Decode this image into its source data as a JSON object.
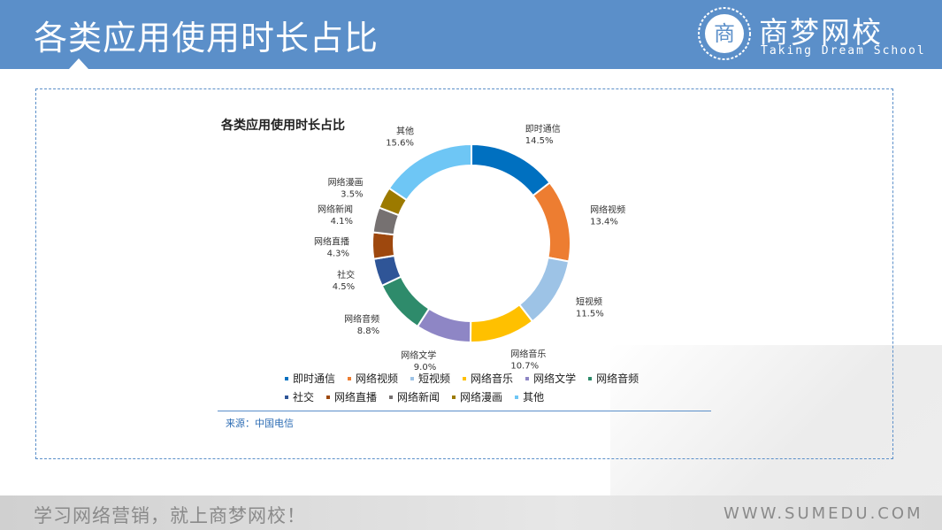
{
  "header": {
    "title": "各类应用使用时长占比",
    "logo_name": "商梦网校",
    "logo_sub": "Taking Dream School",
    "logo_glyph": "商",
    "logo_icon": "seal-logo-icon"
  },
  "chart_data": {
    "type": "pie",
    "donut": true,
    "title": "各类应用使用时长占比",
    "categories": [
      "即时通信",
      "网络视频",
      "短视频",
      "网络音乐",
      "网络文学",
      "网络音频",
      "社交",
      "网络直播",
      "网络新闻",
      "网络漫画",
      "其他"
    ],
    "values": [
      14.5,
      13.4,
      11.5,
      10.7,
      9.0,
      8.8,
      4.5,
      4.3,
      4.1,
      3.5,
      15.6
    ],
    "labels": [
      "14.5%",
      "13.4%",
      "11.5%",
      "10.7%",
      "9.0%",
      "8.8%",
      "4.5%",
      "4.3%",
      "4.1%",
      "3.5%",
      "15.6%"
    ],
    "colors": [
      "#0070c0",
      "#ed7d31",
      "#9dc3e6",
      "#ffc000",
      "#8e86c5",
      "#2e8b6b",
      "#2f5597",
      "#9e480e",
      "#767171",
      "#9c7a00",
      "#6ec6f5"
    ],
    "legend_position": "bottom",
    "source": "来源：中国电信"
  },
  "footer": {
    "slogan": "学习网络营销，就上商梦网校！",
    "url": "WWW.SUMEDU.COM"
  }
}
